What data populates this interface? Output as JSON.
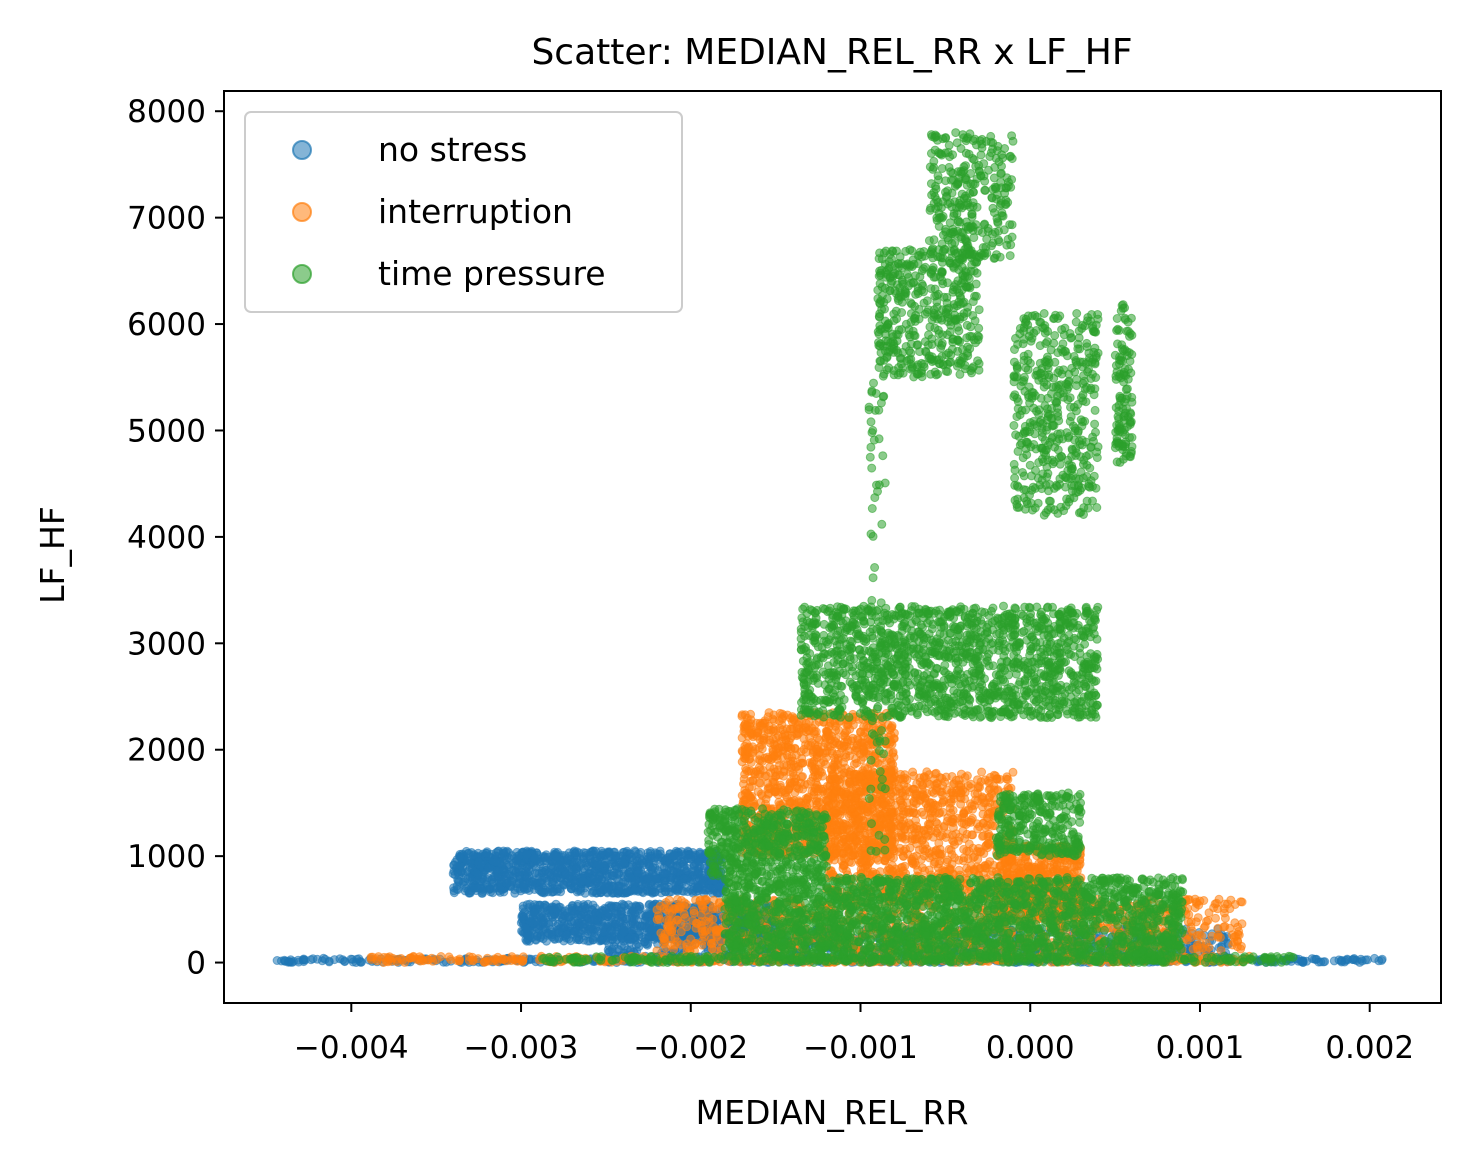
{
  "chart_data": {
    "type": "scatter",
    "title": "Scatter: MEDIAN_REL_RR x LF_HF",
    "xlabel": "MEDIAN_REL_RR",
    "ylabel": "LF_HF",
    "xlim": [
      -0.00475,
      0.00242
    ],
    "ylim": [
      -380,
      8190
    ],
    "x_ticks": [
      -0.004,
      -0.003,
      -0.002,
      -0.001,
      0.0,
      0.001,
      0.002
    ],
    "x_tick_labels": [
      "−0.004",
      "−0.003",
      "−0.002",
      "−0.001",
      "0.000",
      "0.001",
      "0.002"
    ],
    "y_ticks": [
      0,
      1000,
      2000,
      3000,
      4000,
      5000,
      6000,
      7000,
      8000
    ],
    "y_tick_labels": [
      "0",
      "1000",
      "2000",
      "3000",
      "4000",
      "5000",
      "6000",
      "7000",
      "8000"
    ],
    "grid": false,
    "legend_position": "top-left",
    "series": [
      {
        "name": "no stress",
        "color": "#1f77b4",
        "clusters": [
          {
            "x": [
              -0.00445,
              0.0021
            ],
            "y": [
              0,
              40
            ],
            "n": 500
          },
          {
            "x": [
              -0.0034,
              -0.0018
            ],
            "y": [
              650,
              1050
            ],
            "n": 1200
          },
          {
            "x": [
              -0.003,
              -0.0015
            ],
            "y": [
              200,
              550
            ],
            "n": 900
          },
          {
            "x": [
              -0.0025,
              0.0012
            ],
            "y": [
              30,
              320
            ],
            "n": 700
          }
        ]
      },
      {
        "name": "interruption",
        "color": "#ff7f0e",
        "clusters": [
          {
            "x": [
              -0.0039,
              0.0013
            ],
            "y": [
              0,
              60
            ],
            "n": 450
          },
          {
            "x": [
              -0.0017,
              -0.0008
            ],
            "y": [
              1000,
              2350
            ],
            "n": 1100
          },
          {
            "x": [
              -0.0012,
              -0.0001
            ],
            "y": [
              600,
              1800
            ],
            "n": 1000
          },
          {
            "x": [
              -0.0002,
              0.0003
            ],
            "y": [
              400,
              1100
            ],
            "n": 500
          },
          {
            "x": [
              -0.0022,
              0.00125
            ],
            "y": [
              100,
              600
            ],
            "n": 900
          }
        ]
      },
      {
        "name": "time pressure",
        "color": "#2ca02c",
        "clusters": [
          {
            "x": [
              -0.0029,
              0.00155
            ],
            "y": [
              0,
              60
            ],
            "n": 400
          },
          {
            "x": [
              -0.0018,
              0.0009
            ],
            "y": [
              50,
              800
            ],
            "n": 2200
          },
          {
            "x": [
              -0.0019,
              -0.0012
            ],
            "y": [
              800,
              1450
            ],
            "n": 500
          },
          {
            "x": [
              -0.00135,
              0.0004
            ],
            "y": [
              2300,
              3350
            ],
            "n": 1500
          },
          {
            "x": [
              -0.0009,
              -0.0003
            ],
            "y": [
              5500,
              6700
            ],
            "n": 450
          },
          {
            "x": [
              -0.0006,
              -0.0001
            ],
            "y": [
              6600,
              7800
            ],
            "n": 300
          },
          {
            "x": [
              -0.0001,
              0.0004
            ],
            "y": [
              4200,
              6100
            ],
            "n": 450
          },
          {
            "x": [
              0.0005,
              0.0006
            ],
            "y": [
              4700,
              6200
            ],
            "n": 120
          },
          {
            "x": [
              -0.0002,
              0.0003
            ],
            "y": [
              1000,
              1600
            ],
            "n": 300
          },
          {
            "x": [
              -0.00095,
              -0.00085
            ],
            "y": [
              1000,
              5500
            ],
            "n": 70
          }
        ]
      }
    ]
  }
}
